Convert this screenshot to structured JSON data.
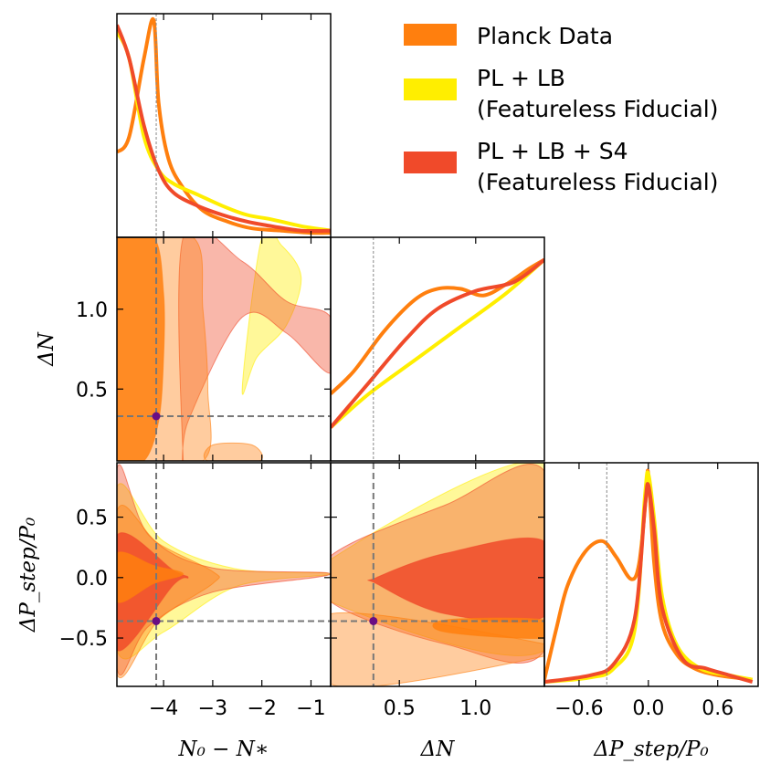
{
  "chart_data": {
    "type": "corner",
    "parameters": [
      "N_0 - N_*",
      "ΔN",
      "ΔP_step/P_0"
    ],
    "axis_labels": {
      "p0": "N₀ − N∗",
      "p1": "ΔN",
      "p2": "ΔP_step/P₀"
    },
    "ranges": {
      "p0": [
        -4.95,
        -0.6
      ],
      "p1": [
        0.05,
        1.45
      ],
      "p2": [
        -0.9,
        0.95
      ]
    },
    "ticks": {
      "p0": [
        -4,
        -3,
        -2,
        -1
      ],
      "p1": [
        0.5,
        1.0
      ],
      "p2": [
        -0.5,
        0.0,
        0.5
      ],
      "p2_diag": [
        -0.6,
        0.0,
        0.6
      ]
    },
    "tick_labels": {
      "p0": [
        "−4",
        "−3",
        "−2",
        "−1"
      ],
      "p1": [
        "0.5",
        "1.0"
      ],
      "p2": [
        "−0.5",
        "0.0",
        "0.5"
      ],
      "p2_diag": [
        "−0.6",
        "0.0",
        "0.6"
      ]
    },
    "fiducial": {
      "p0": -4.15,
      "p1": 0.33,
      "p2": -0.36
    },
    "legend": {
      "placement": "top-right",
      "entries": [
        {
          "label_lines": [
            "Planck Data"
          ],
          "color": "#ff7f0e"
        },
        {
          "label_lines": [
            "PL + LB",
            "(Featureless Fiducial)"
          ],
          "color": "#ffee00"
        },
        {
          "label_lines": [
            "PL + LB + S4",
            "(Featureless Fiducial)"
          ],
          "color": "#f04a2a"
        }
      ]
    },
    "series": [
      {
        "name": "Planck Data",
        "color": "#ff7f0e",
        "marginals": {
          "p0": [
            [
              -4.95,
              0.38
            ],
            [
              -4.7,
              0.45
            ],
            [
              -4.4,
              0.8
            ],
            [
              -4.2,
              0.97
            ],
            [
              -4.1,
              0.6
            ],
            [
              -3.9,
              0.35
            ],
            [
              -3.6,
              0.22
            ],
            [
              -3.2,
              0.12
            ],
            [
              -2.7,
              0.07
            ],
            [
              -2.2,
              0.04
            ],
            [
              -1.6,
              0.03
            ],
            [
              -1.0,
              0.02
            ],
            [
              -0.6,
              0.02
            ]
          ],
          "p1": [
            [
              0.05,
              0.3
            ],
            [
              0.2,
              0.4
            ],
            [
              0.4,
              0.58
            ],
            [
              0.6,
              0.72
            ],
            [
              0.75,
              0.77
            ],
            [
              0.9,
              0.77
            ],
            [
              1.05,
              0.74
            ],
            [
              1.2,
              0.79
            ],
            [
              1.35,
              0.86
            ],
            [
              1.45,
              0.9
            ]
          ],
          "p2": [
            [
              -0.9,
              0.03
            ],
            [
              -0.8,
              0.25
            ],
            [
              -0.7,
              0.45
            ],
            [
              -0.55,
              0.6
            ],
            [
              -0.4,
              0.65
            ],
            [
              -0.28,
              0.58
            ],
            [
              -0.15,
              0.48
            ],
            [
              -0.08,
              0.55
            ],
            [
              -0.02,
              0.85
            ],
            [
              0.0,
              0.95
            ],
            [
              0.05,
              0.55
            ],
            [
              0.12,
              0.28
            ],
            [
              0.25,
              0.14
            ],
            [
              0.4,
              0.08
            ],
            [
              0.6,
              0.05
            ],
            [
              0.9,
              0.03
            ]
          ]
        },
        "contours_p0_p1": [
          {
            "level": "68%",
            "points": [
              [
                -4.95,
                1.45
              ],
              [
                -4.2,
                1.45
              ],
              [
                -4.0,
                1.1
              ],
              [
                -4.0,
                0.7
              ],
              [
                -4.1,
                0.3
              ],
              [
                -4.4,
                0.05
              ],
              [
                -4.95,
                0.05
              ]
            ]
          },
          {
            "level": "95%",
            "points": [
              [
                -4.95,
                1.45
              ],
              [
                -3.4,
                1.45
              ],
              [
                -3.2,
                1.0
              ],
              [
                -3.1,
                0.5
              ],
              [
                -3.2,
                0.05
              ],
              [
                -4.95,
                0.05
              ]
            ]
          },
          {
            "level": "95%",
            "points": [
              [
                -3.1,
                0.05
              ],
              [
                -3.0,
                0.15
              ],
              [
                -2.2,
                0.15
              ],
              [
                -2.05,
                0.05
              ]
            ]
          }
        ],
        "contours_p0_p2": [
          {
            "level": "68%",
            "points": [
              [
                -4.95,
                0.2
              ],
              [
                -4.2,
                0.1
              ],
              [
                -3.6,
                0.03
              ],
              [
                -4.2,
                -0.05
              ],
              [
                -4.95,
                -0.2
              ]
            ]
          },
          {
            "level": "95%",
            "points": [
              [
                -4.95,
                0.55
              ],
              [
                -4.1,
                0.28
              ],
              [
                -3.0,
                0.05
              ],
              [
                -3.0,
                -0.05
              ],
              [
                -4.1,
                -0.35
              ],
              [
                -4.95,
                -0.8
              ]
            ]
          }
        ],
        "contours_p1_p2": [
          {
            "level": "68%",
            "points": [
              [
                0.8,
                -0.35
              ],
              [
                1.45,
                -0.35
              ],
              [
                1.45,
                -0.5
              ],
              [
                0.8,
                -0.45
              ]
            ]
          },
          {
            "level": "95%",
            "points": [
              [
                0.05,
                -0.3
              ],
              [
                1.45,
                -0.55
              ],
              [
                1.45,
                -0.65
              ],
              [
                0.1,
                -0.9
              ]
            ]
          }
        ]
      },
      {
        "name": "PL + LB",
        "color": "#ffee00",
        "marginals": {
          "p0": [
            [
              -4.95,
              0.92
            ],
            [
              -4.7,
              0.8
            ],
            [
              -4.4,
              0.45
            ],
            [
              -4.1,
              0.3
            ],
            [
              -3.8,
              0.24
            ],
            [
              -3.3,
              0.19
            ],
            [
              -2.8,
              0.14
            ],
            [
              -2.3,
              0.1
            ],
            [
              -1.8,
              0.08
            ],
            [
              -1.2,
              0.05
            ],
            [
              -0.6,
              0.03
            ]
          ],
          "p1": [
            [
              0.05,
              0.15
            ],
            [
              0.3,
              0.3
            ],
            [
              0.6,
              0.45
            ],
            [
              0.9,
              0.6
            ],
            [
              1.2,
              0.75
            ],
            [
              1.45,
              0.9
            ]
          ],
          "p2": [
            [
              -0.9,
              0.02
            ],
            [
              -0.5,
              0.04
            ],
            [
              -0.3,
              0.08
            ],
            [
              -0.12,
              0.25
            ],
            [
              -0.03,
              0.85
            ],
            [
              0.0,
              0.95
            ],
            [
              0.05,
              0.75
            ],
            [
              0.12,
              0.4
            ],
            [
              0.25,
              0.18
            ],
            [
              0.45,
              0.08
            ],
            [
              0.7,
              0.05
            ],
            [
              0.9,
              0.03
            ]
          ]
        },
        "contours_p0_p1": [
          {
            "level": "95%",
            "points": [
              [
                -2.0,
                1.45
              ],
              [
                -1.6,
                1.4
              ],
              [
                -1.2,
                1.2
              ],
              [
                -1.5,
                0.9
              ],
              [
                -2.1,
                0.7
              ],
              [
                -2.4,
                0.5
              ]
            ]
          }
        ],
        "contours_p0_p2": [
          {
            "level": "95%",
            "points": [
              [
                -4.95,
                0.75
              ],
              [
                -4.0,
                0.3
              ],
              [
                -2.5,
                0.07
              ],
              [
                -0.6,
                0.03
              ],
              [
                -2.5,
                -0.07
              ],
              [
                -4.0,
                -0.45
              ],
              [
                -4.95,
                -0.6
              ]
            ]
          }
        ],
        "contours_p1_p2": [
          {
            "level": "95%",
            "points": [
              [
                0.05,
                0.15
              ],
              [
                1.45,
                0.95
              ],
              [
                1.45,
                -0.6
              ],
              [
                0.05,
                -0.2
              ]
            ]
          }
        ]
      },
      {
        "name": "PL + LB + S4",
        "color": "#f04a2a",
        "marginals": {
          "p0": [
            [
              -4.95,
              0.95
            ],
            [
              -4.7,
              0.8
            ],
            [
              -4.4,
              0.5
            ],
            [
              -4.1,
              0.3
            ],
            [
              -3.8,
              0.2
            ],
            [
              -3.3,
              0.14
            ],
            [
              -2.8,
              0.1
            ],
            [
              -2.3,
              0.07
            ],
            [
              -1.8,
              0.05
            ],
            [
              -1.2,
              0.03
            ],
            [
              -0.6,
              0.03
            ]
          ],
          "p1": [
            [
              0.05,
              0.15
            ],
            [
              0.3,
              0.35
            ],
            [
              0.55,
              0.55
            ],
            [
              0.75,
              0.68
            ],
            [
              1.0,
              0.76
            ],
            [
              1.25,
              0.8
            ],
            [
              1.45,
              0.9
            ]
          ],
          "p2": [
            [
              -0.9,
              0.02
            ],
            [
              -0.5,
              0.05
            ],
            [
              -0.3,
              0.1
            ],
            [
              -0.12,
              0.3
            ],
            [
              -0.03,
              0.8
            ],
            [
              0.0,
              0.9
            ],
            [
              0.05,
              0.7
            ],
            [
              0.12,
              0.35
            ],
            [
              0.3,
              0.12
            ],
            [
              0.5,
              0.08
            ],
            [
              0.7,
              0.05
            ],
            [
              0.9,
              0.02
            ]
          ]
        },
        "contours_p0_p1": [
          {
            "level": "95%",
            "points": [
              [
                -3.6,
                1.45
              ],
              [
                -2.4,
                1.3
              ],
              [
                -1.5,
                1.05
              ],
              [
                -0.6,
                0.95
              ],
              [
                -0.6,
                0.6
              ],
              [
                -1.5,
                0.85
              ],
              [
                -2.4,
                0.95
              ],
              [
                -3.5,
                0.3
              ],
              [
                -3.6,
                0.05
              ]
            ]
          }
        ],
        "contours_p0_p2": [
          {
            "level": "68%",
            "points": [
              [
                -4.95,
                0.35
              ],
              [
                -3.8,
                0.06
              ],
              [
                -3.5,
                0.0
              ],
              [
                -3.8,
                -0.06
              ],
              [
                -4.95,
                -0.6
              ]
            ]
          },
          {
            "level": "95%",
            "points": [
              [
                -4.95,
                0.9
              ],
              [
                -4.3,
                0.35
              ],
              [
                -3.0,
                0.08
              ],
              [
                -0.6,
                0.03
              ],
              [
                -3.0,
                -0.12
              ],
              [
                -4.3,
                -0.4
              ],
              [
                -4.95,
                -0.75
              ]
            ]
          }
        ],
        "contours_p1_p2": [
          {
            "level": "68%",
            "points": [
              [
                0.35,
                0.0
              ],
              [
                0.8,
                0.2
              ],
              [
                1.45,
                0.3
              ],
              [
                1.45,
                -0.32
              ],
              [
                0.8,
                -0.3
              ],
              [
                0.35,
                -0.05
              ]
            ]
          },
          {
            "level": "95%",
            "points": [
              [
                0.05,
                0.18
              ],
              [
                0.8,
                0.6
              ],
              [
                1.45,
                0.88
              ],
              [
                1.45,
                -0.6
              ],
              [
                0.8,
                -0.55
              ],
              [
                0.05,
                -0.2
              ]
            ]
          }
        ]
      }
    ]
  }
}
